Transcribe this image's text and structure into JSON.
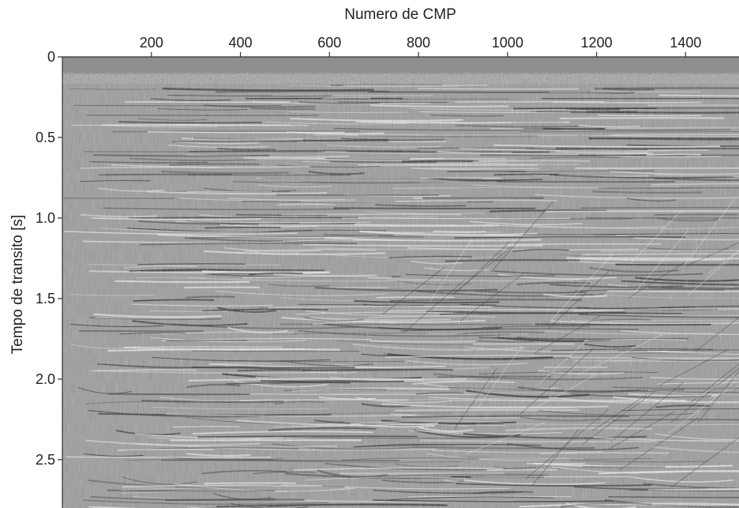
{
  "figure": {
    "xlabel": "Numero de CMP",
    "ylabel": "Tempo de transito [s]",
    "x_ticks": [
      "200",
      "400",
      "600",
      "800",
      "1000",
      "1200",
      "1400"
    ],
    "y_ticks": [
      "0",
      "0.5",
      "1.0",
      "1.5",
      "2.0",
      "2.5"
    ],
    "x_tick_values": [
      200,
      400,
      600,
      800,
      1000,
      1200,
      1400
    ],
    "y_tick_values": [
      0,
      0.5,
      1.0,
      1.5,
      2.0,
      2.5
    ],
    "xlim": [
      0,
      1520
    ],
    "ylim": [
      0,
      2.8
    ],
    "colors": {
      "water_column": "#8e8e8e",
      "section_base": "#9b9b9b",
      "reflector_dark": "#2a2a2a",
      "reflector_light": "#ececec"
    }
  }
}
